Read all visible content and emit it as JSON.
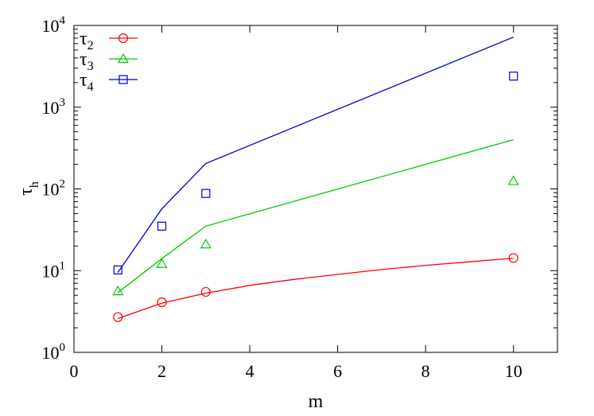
{
  "chart_data": {
    "type": "line",
    "xlabel": "m",
    "ylabel": {
      "base": "τ",
      "sub": "h"
    },
    "xlim": [
      0,
      11
    ],
    "ylim": [
      1,
      10000
    ],
    "y_scale": "log",
    "grid": false,
    "legend_position": "top-left",
    "x_ticks": [
      {
        "value": 0,
        "label": "0"
      },
      {
        "value": 2,
        "label": "2"
      },
      {
        "value": 4,
        "label": "4"
      },
      {
        "value": 6,
        "label": "6"
      },
      {
        "value": 8,
        "label": "8"
      },
      {
        "value": 10,
        "label": "10"
      }
    ],
    "y_ticks": [
      {
        "value": 1,
        "base": "10",
        "exp": "0"
      },
      {
        "value": 10,
        "base": "10",
        "exp": "1"
      },
      {
        "value": 100,
        "base": "10",
        "exp": "2"
      },
      {
        "value": 1000,
        "base": "10",
        "exp": "3"
      },
      {
        "value": 10000,
        "base": "10",
        "exp": "4"
      }
    ],
    "series": [
      {
        "name": "τ2",
        "base": "τ",
        "sub": "2",
        "color": "#ff0000",
        "marker": "circle",
        "line": {
          "x": [
            1,
            2,
            3,
            4,
            5,
            6,
            7,
            8,
            9,
            10
          ],
          "y": [
            2.6,
            4.0,
            5.3,
            6.6,
            7.8,
            9.0,
            10.3,
            11.6,
            12.8,
            14.2
          ]
        },
        "points": {
          "x": [
            1,
            2,
            3,
            10
          ],
          "y": [
            2.7,
            4.1,
            5.5,
            14.3
          ]
        }
      },
      {
        "name": "τ3",
        "base": "τ",
        "sub": "3",
        "color": "#00cc00",
        "marker": "triangle",
        "line": {
          "x": [
            1,
            2,
            3,
            10
          ],
          "y": [
            5.4,
            14.0,
            35.0,
            400.0
          ]
        },
        "points": {
          "x": [
            1,
            2,
            3,
            10
          ],
          "y": [
            5.6,
            12.1,
            21.0,
            125.0
          ]
        }
      },
      {
        "name": "τ4",
        "base": "τ",
        "sub": "4",
        "color": "#0000cc",
        "marker": "square",
        "line": {
          "x": [
            1,
            2,
            3,
            10
          ],
          "y": [
            9.5,
            57.0,
            205.0,
            7200.0
          ]
        },
        "points": {
          "x": [
            1,
            2,
            3,
            10
          ],
          "y": [
            10.2,
            35.0,
            88.0,
            2400.0
          ]
        }
      }
    ]
  }
}
